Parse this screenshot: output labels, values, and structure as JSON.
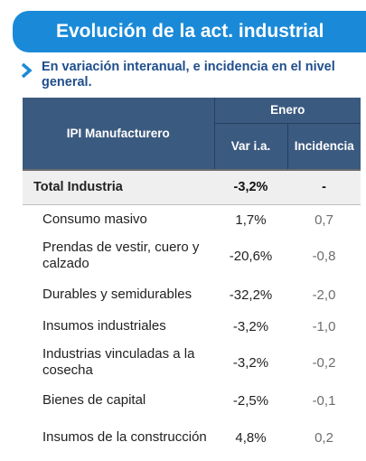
{
  "title": "Evolución de la act. industrial",
  "subtitle": "En variación interanual, e incidencia en el nivel general.",
  "colors": {
    "title_bg": "#1a8ad8",
    "header_bg": "#3b5a7f",
    "subtitle": "#1f4e8c",
    "positive": "#5aa84a",
    "negative": "#d0424a"
  },
  "chart_data": {
    "type": "table",
    "row_header": "IPI Manufacturero",
    "column_group": "Enero",
    "columns": [
      "Var i.a.",
      "Incidencia"
    ],
    "total": {
      "label": "Total Industria",
      "var": "-3,2%",
      "inc": "-"
    },
    "rows": [
      {
        "label": "Consumo masivo",
        "var": "1,7%",
        "inc": "0,7",
        "sign": "pos"
      },
      {
        "label": "Prendas de vestir, cuero y calzado",
        "var": "-20,6%",
        "inc": "-0,8",
        "sign": "neg"
      },
      {
        "label": "Durables y semidurables",
        "var": "-32,2%",
        "inc": "-2,0",
        "sign": "neg"
      },
      {
        "label": "Insumos industriales",
        "var": "-3,2%",
        "inc": "-1,0",
        "sign": "neg"
      },
      {
        "label": "Industrias vinculadas a la cosecha",
        "var": "-3,2%",
        "inc": "-0,2",
        "sign": "neg"
      },
      {
        "label": "Bienes de capital",
        "var": "-2,5%",
        "inc": "-0,1",
        "sign": "neg"
      },
      {
        "label": "Insumos de la construcción",
        "var": "4,8%",
        "inc": "0,2",
        "sign": "pos"
      }
    ]
  }
}
